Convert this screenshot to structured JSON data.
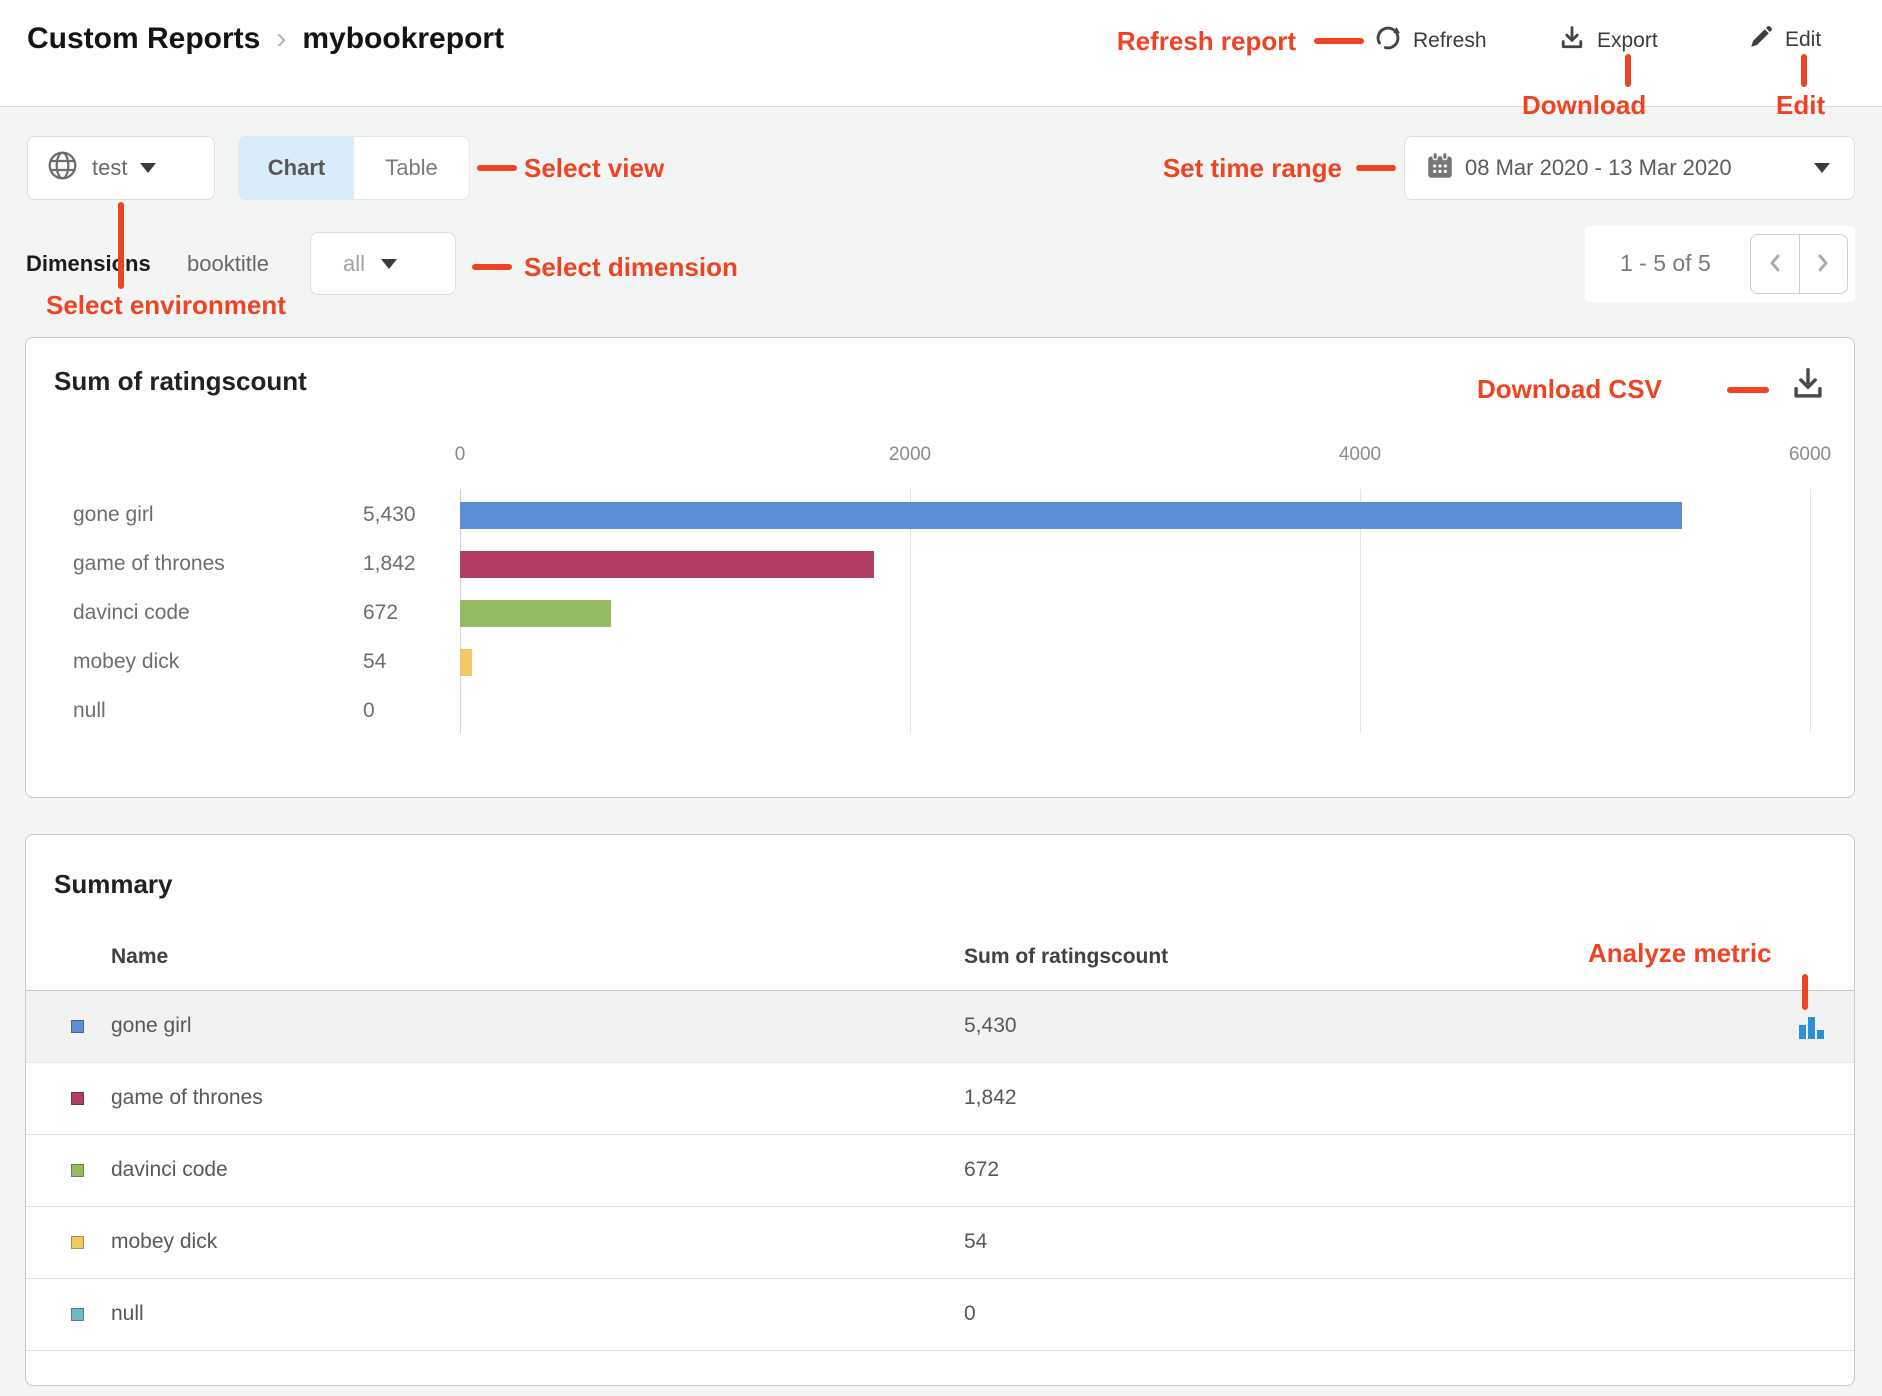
{
  "colors": {
    "annotation_red": "#ee4424",
    "selected_tab_bg": "#d8ecf9",
    "analyze_icon_blue": "#2f8fd6"
  },
  "header": {
    "breadcrumb": [
      "Custom Reports",
      "mybookreport"
    ],
    "actions": {
      "refresh": "Refresh",
      "export": "Export",
      "edit": "Edit"
    }
  },
  "annotations": {
    "refresh_report": "Refresh report",
    "download": "Download",
    "edit": "Edit",
    "select_view": "Select view",
    "set_time_range": "Set time range",
    "select_dimension": "Select dimension",
    "select_environment": "Select environment",
    "download_csv": "Download CSV",
    "analyze_metric": "Analyze metric"
  },
  "toolbar": {
    "environment": "test",
    "view_options": [
      "Chart",
      "Table"
    ],
    "selected_view": "Chart",
    "date_range": "08 Mar 2020 - 13 Mar 2020"
  },
  "dimensions": {
    "label": "Dimensions",
    "field": "booktitle",
    "value": "all"
  },
  "pagination": {
    "range": "1 - 5 of 5"
  },
  "chart_data": {
    "type": "bar",
    "orientation": "horizontal",
    "title": "Sum of ratingscount",
    "categories": [
      "gone girl",
      "game of thrones",
      "davinci code",
      "mobey dick",
      "null"
    ],
    "values": [
      5430,
      1842,
      672,
      54,
      0
    ],
    "value_labels": [
      "5,430",
      "1,842",
      "672",
      "54",
      "0"
    ],
    "bar_colors": [
      "#5b8ed6",
      "#b23e67",
      "#94ba62",
      "#f2c765",
      "#6cb8c4"
    ],
    "x_ticks": [
      0,
      2000,
      4000,
      6000
    ],
    "xlim": [
      0,
      6000
    ],
    "grid": "vertical",
    "legend": "none"
  },
  "summary": {
    "title": "Summary",
    "columns": [
      "Name",
      "Sum of ratingscount"
    ],
    "rows": [
      {
        "name": "gone girl",
        "value": "5,430",
        "swatch": "#5b8ed6",
        "highlighted": true,
        "has_analyze_icon": true
      },
      {
        "name": "game of thrones",
        "value": "1,842",
        "swatch": "#b23e67"
      },
      {
        "name": "davinci code",
        "value": "672",
        "swatch": "#94ba62"
      },
      {
        "name": "mobey dick",
        "value": "54",
        "swatch": "#f2c765"
      },
      {
        "name": "null",
        "value": "0",
        "swatch": "#6cb8c4"
      }
    ]
  }
}
